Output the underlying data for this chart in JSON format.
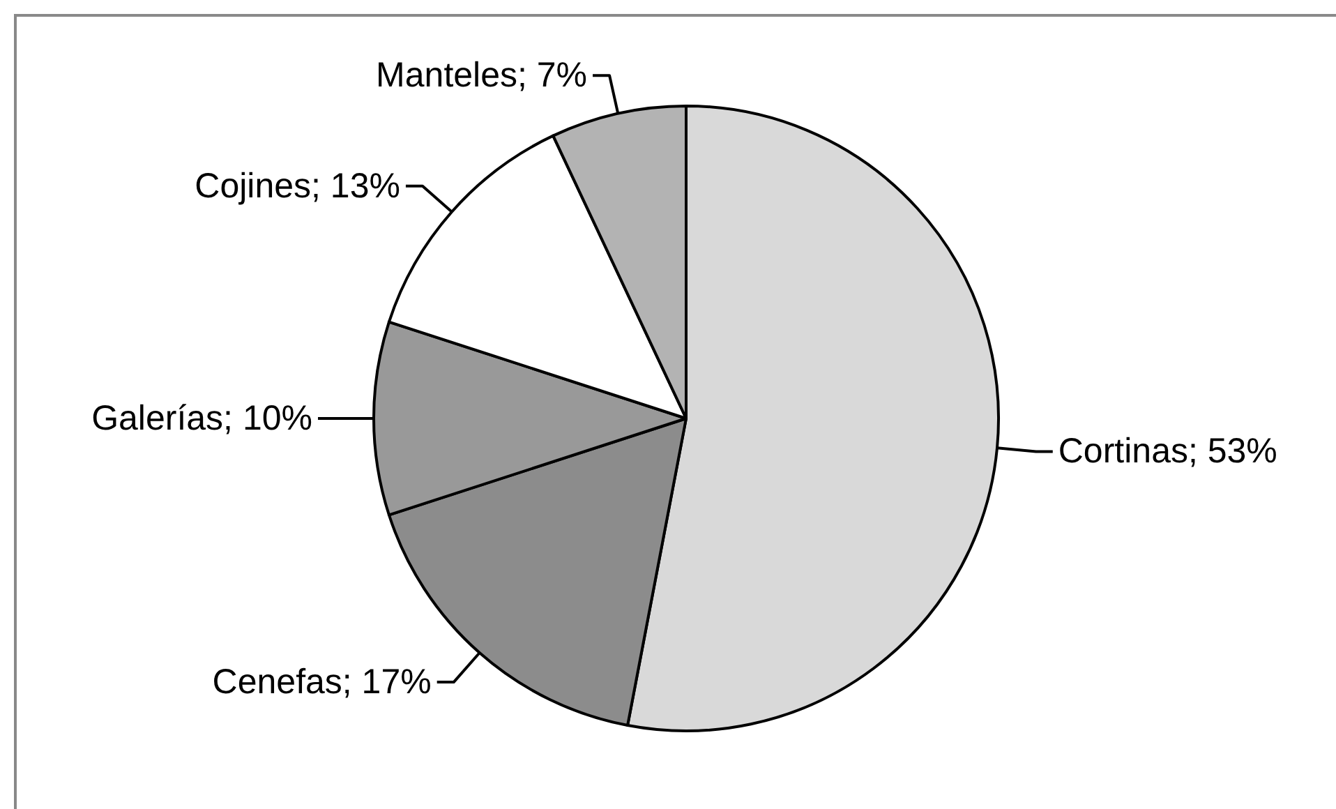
{
  "chart_data": {
    "type": "pie",
    "categories": [
      "Cortinas",
      "Cenefas",
      "Galerías",
      "Cojines",
      "Manteles"
    ],
    "values": [
      53,
      17,
      10,
      13,
      7
    ],
    "colors": [
      "#d9d9d9",
      "#8c8c8c",
      "#999999",
      "#ffffff",
      "#b3b3b3"
    ],
    "value_labels": [
      "53%",
      "17%",
      "10%",
      "13%",
      "7%"
    ]
  }
}
